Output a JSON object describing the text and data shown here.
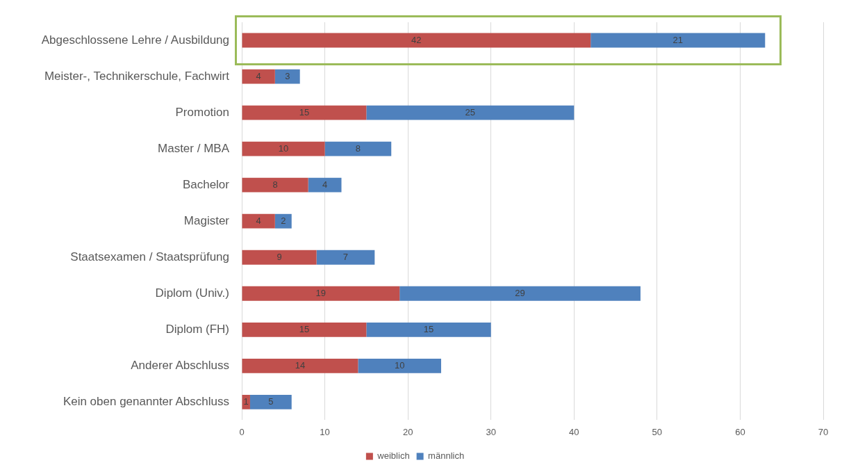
{
  "chart_data": {
    "type": "bar",
    "orientation": "horizontal",
    "stacked": true,
    "categories": [
      "Abgeschlossene Lehre / Ausbildung",
      "Meister-, Technikerschule, Fachwirt",
      "Promotion",
      "Master / MBA",
      "Bachelor",
      "Magister",
      "Staatsexamen / Staatsprüfung",
      "Diplom (Univ.)",
      "Diplom (FH)",
      "Anderer Abschluss",
      "Kein oben genannter Abschluss"
    ],
    "series": [
      {
        "name": "weiblich",
        "color": "#c0504d",
        "values": [
          42,
          4,
          15,
          10,
          8,
          4,
          9,
          19,
          15,
          14,
          1
        ]
      },
      {
        "name": "männlich",
        "color": "#4f81bd",
        "values": [
          21,
          3,
          25,
          8,
          4,
          2,
          7,
          29,
          15,
          10,
          5
        ]
      }
    ],
    "xlim": [
      0,
      70
    ],
    "xticks": [
      0,
      10,
      20,
      30,
      40,
      50,
      60,
      70
    ],
    "grid": "x",
    "legend": "bottom",
    "data_labels": true
  }
}
